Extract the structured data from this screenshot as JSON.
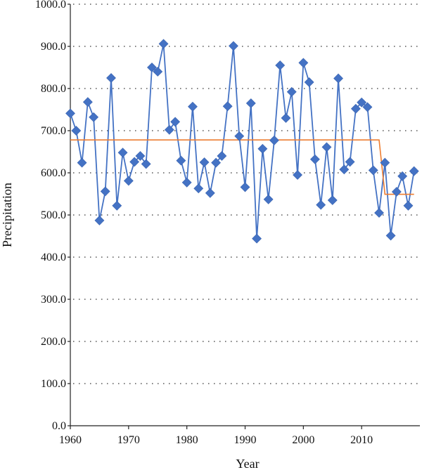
{
  "chart_data": {
    "type": "line",
    "title": "",
    "xlabel": "Year",
    "ylabel": "Precipitation",
    "xlim": [
      1960,
      2020
    ],
    "ylim": [
      0,
      1000
    ],
    "x_ticks": [
      1960,
      1970,
      1980,
      1990,
      2000,
      2010
    ],
    "x_tick_labels": [
      "1960",
      "1970",
      "1980",
      "1990",
      "2000",
      "2010"
    ],
    "y_ticks": [
      0,
      100,
      200,
      300,
      400,
      500,
      600,
      700,
      800,
      900,
      1000
    ],
    "y_tick_labels": [
      "0.0",
      "100.0",
      "200.0",
      "300.0",
      "400.0",
      "500.0",
      "600.0",
      "700.0",
      "800.0",
      "900.0",
      "1000.0"
    ],
    "grid": "horizontal dotted",
    "legend": "none",
    "series": [
      {
        "color": "#4472c4",
        "marker": "diamond",
        "x": [
          1960,
          1961,
          1962,
          1963,
          1964,
          1965,
          1966,
          1967,
          1968,
          1969,
          1970,
          1971,
          1972,
          1973,
          1974,
          1975,
          1976,
          1977,
          1978,
          1979,
          1980,
          1981,
          1982,
          1983,
          1984,
          1985,
          1986,
          1987,
          1988,
          1989,
          1990,
          1991,
          1992,
          1993,
          1994,
          1995,
          1996,
          1997,
          1998,
          1999,
          2000,
          2001,
          2002,
          2003,
          2004,
          2005,
          2006,
          2007,
          2008,
          2009,
          2010,
          2011,
          2012,
          2013,
          2014,
          2015,
          2016,
          2017,
          2018,
          2019
        ],
        "values": [
          741,
          700,
          624,
          768,
          732,
          487,
          556,
          825,
          522,
          648,
          581,
          626,
          640,
          621,
          850,
          840,
          906,
          702,
          721,
          629,
          577,
          757,
          563,
          625,
          552,
          624,
          640,
          758,
          901,
          687,
          566,
          765,
          444,
          657,
          537,
          677,
          855,
          730,
          792,
          595,
          861,
          815,
          632,
          524,
          661,
          535,
          824,
          608,
          626,
          752,
          767,
          756,
          606,
          505,
          624,
          451,
          555,
          592,
          522,
          604
        ]
      },
      {
        "color": "#ed7d31",
        "marker": "none",
        "segments": [
          {
            "x": [
              1960,
              2013
            ],
            "value": 678
          },
          {
            "x": [
              2014,
              2019
            ],
            "value": 549
          }
        ]
      }
    ]
  }
}
